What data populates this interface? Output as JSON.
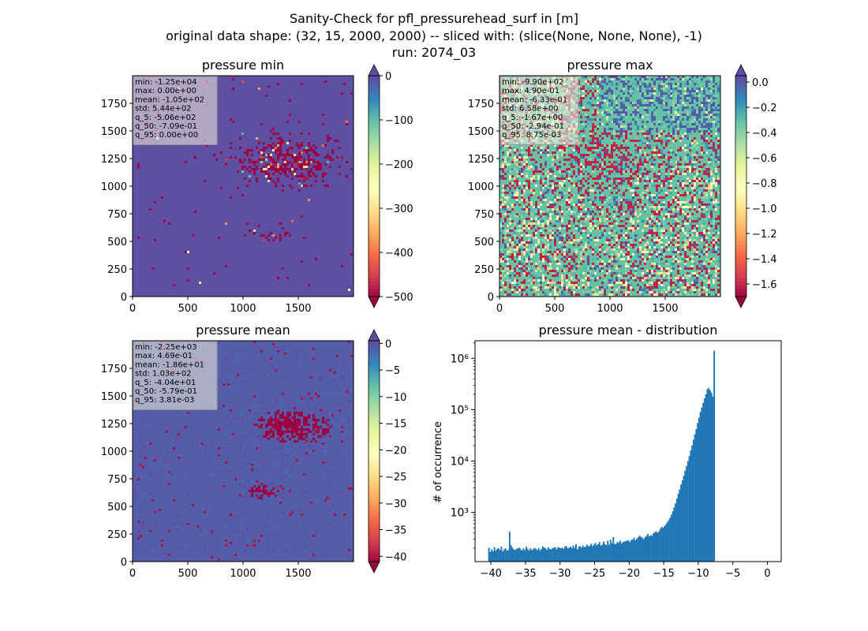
{
  "figure": {
    "title_lines": [
      "Sanity-Check for pfl_pressurehead_surf in [m]",
      "original data shape: (32, 15, 2000, 2000) -- sliced with: (slice(None, None, None), -1)",
      "run: 2074_03"
    ]
  },
  "colors": {
    "spectral": [
      "#9e0142",
      "#d53e4f",
      "#f46d43",
      "#fdae61",
      "#fee08b",
      "#ffffbf",
      "#e6f598",
      "#abdda4",
      "#66c2a5",
      "#3288bd",
      "#5e4fa2"
    ],
    "hist_bar": "#1f77b4"
  },
  "chart_data": [
    {
      "type": "heatmap",
      "title": "pressure min",
      "colormap": "Spectral",
      "x_ticks": [
        "0",
        "500",
        "1000",
        "1500"
      ],
      "y_ticks": [
        "0",
        "250",
        "500",
        "750",
        "1000",
        "1250",
        "1500",
        "1750"
      ],
      "xlim": [
        0,
        2000
      ],
      "ylim": [
        0,
        2000
      ],
      "colorbar": {
        "vmin": -500,
        "vmax": 0,
        "extend": "both",
        "ticks": [
          0,
          -100,
          -200,
          -300,
          -400,
          -500
        ],
        "tick_labels": [
          "0",
          "−100",
          "−200",
          "−300",
          "−400",
          "−500"
        ]
      },
      "background_value": 0,
      "stats": [
        "min: -1.25e+04",
        "max: 0.00e+00",
        "mean: -1.05e+02",
        "std: 5.44e+02",
        "q_5: -5.06e+02",
        "q_50: -7.09e-01",
        "q_95: 0.00e+00"
      ]
    },
    {
      "type": "heatmap",
      "title": "pressure max",
      "colormap": "Spectral",
      "x_ticks": [
        "0",
        "500",
        "1000",
        "1500"
      ],
      "y_ticks": [
        "0",
        "250",
        "500",
        "750",
        "1000",
        "1250",
        "1500",
        "1750"
      ],
      "xlim": [
        0,
        2000
      ],
      "ylim": [
        0,
        2000
      ],
      "colorbar": {
        "vmin": -1.7,
        "vmax": 0.05,
        "extend": "both",
        "ticks": [
          0.0,
          -0.2,
          -0.4,
          -0.6,
          -0.8,
          -1.0,
          -1.2,
          -1.4,
          -1.6
        ],
        "tick_labels": [
          "0.0",
          "−0.2",
          "−0.4",
          "−0.6",
          "−0.8",
          "−1.0",
          "−1.2",
          "−1.4",
          "−1.6"
        ]
      },
      "background_value": -0.3,
      "stats": [
        "min: -9.90e+02",
        "max: 4.90e-01",
        "mean: -6.33e-01",
        "std: 6.58e+00",
        "q_5: -1.67e+00",
        "q_50: -2.94e-01",
        "q_95: 8.75e-03"
      ]
    },
    {
      "type": "heatmap",
      "title": "pressure mean",
      "colormap": "Spectral",
      "x_ticks": [
        "0",
        "500",
        "1000",
        "1500"
      ],
      "y_ticks": [
        "0",
        "250",
        "500",
        "750",
        "1000",
        "1250",
        "1500",
        "1750"
      ],
      "xlim": [
        0,
        2000
      ],
      "ylim": [
        0,
        2000
      ],
      "colorbar": {
        "vmin": -41,
        "vmax": 0.5,
        "extend": "both",
        "ticks": [
          0,
          -5,
          -10,
          -15,
          -20,
          -25,
          -30,
          -35,
          -40
        ],
        "tick_labels": [
          "0",
          "−5",
          "−10",
          "−15",
          "−20",
          "−25",
          "−30",
          "−35",
          "−40"
        ]
      },
      "background_value": -0.5,
      "stats": [
        "min: -2.25e+03",
        "max: 4.69e-01",
        "mean: -1.86e+01",
        "std: 1.03e+02",
        "q_5: -4.04e+01",
        "q_50: -5.79e-01",
        "q_95: 3.81e-03"
      ]
    },
    {
      "type": "bar",
      "title": "pressure mean - distribution",
      "ylabel": "# of occurrence",
      "xlabel": "",
      "yscale": "log",
      "xlim": [
        -42.3,
        2.0
      ],
      "ylim": [
        110,
        2200000
      ],
      "x_ticks": [
        -40,
        -35,
        -30,
        -25,
        -20,
        -15,
        -10,
        -5,
        0
      ],
      "x_tick_labels": [
        "−40",
        "−35",
        "−30",
        "−25",
        "−20",
        "−15",
        "−10",
        "−5",
        "0"
      ],
      "y_ticks": [
        1000,
        10000,
        100000,
        1000000
      ],
      "y_tick_labels": [
        "10³",
        "10⁴",
        "10⁵",
        "10⁶"
      ],
      "bin_start": -40.4,
      "bin_width": 0.2,
      "counts": [
        205,
        170,
        190,
        175,
        210,
        180,
        195,
        200,
        185,
        215,
        175,
        190,
        200,
        180,
        185,
        420,
        230,
        205,
        190,
        185,
        195,
        200,
        205,
        190,
        180,
        200,
        185,
        215,
        195,
        180,
        200,
        185,
        190,
        205,
        195,
        185,
        200,
        180,
        195,
        215,
        205,
        200,
        185,
        210,
        195,
        190,
        200,
        205,
        210,
        190,
        210,
        205,
        200,
        205,
        195,
        215,
        220,
        200,
        205,
        215,
        200,
        225,
        205,
        240,
        190,
        215,
        220,
        205,
        225,
        210,
        215,
        235,
        215,
        225,
        245,
        220,
        235,
        255,
        230,
        240,
        265,
        225,
        235,
        270,
        240,
        230,
        280,
        235,
        295,
        250,
        330,
        240,
        245,
        265,
        255,
        280,
        250,
        265,
        270,
        275,
        280,
        285,
        265,
        290,
        295,
        320,
        285,
        305,
        330,
        350,
        335,
        320,
        300,
        330,
        350,
        380,
        340,
        360,
        350,
        390,
        410,
        430,
        400,
        430,
        480,
        520,
        500,
        540,
        580,
        640,
        700,
        780,
        900,
        1050,
        1250,
        1500,
        1850,
        2300,
        2800,
        3500,
        4200,
        5200,
        6500,
        8000,
        10000,
        12500,
        16000,
        20000,
        26000,
        33000,
        42000,
        55000,
        70000,
        90000,
        110000,
        135000,
        165000,
        200000,
        250000,
        265000,
        240000,
        215000,
        180000,
        1400000
      ]
    }
  ]
}
